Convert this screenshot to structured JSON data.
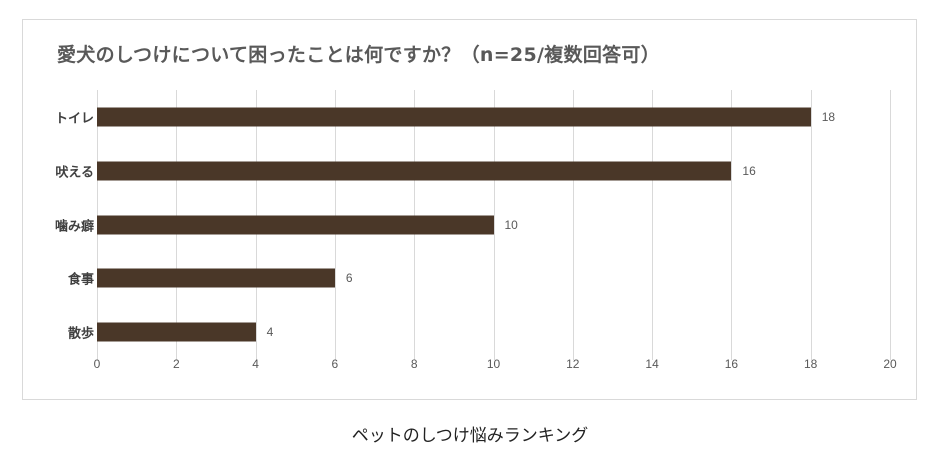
{
  "chart_data": {
    "type": "bar",
    "orientation": "horizontal",
    "title": "愛犬のしつけについて困ったことは何ですか？（n=25/複数回答可）",
    "categories": [
      "トイレ",
      "吠える",
      "噛み癖",
      "食事",
      "散歩"
    ],
    "values": [
      18,
      16,
      10,
      6,
      4
    ],
    "data_labels": [
      "18",
      "16",
      "10",
      "6",
      "4"
    ],
    "xlabel": "",
    "ylabel": "",
    "xlim": [
      0,
      20
    ],
    "x_ticks": [
      "0",
      "2",
      "4",
      "6",
      "8",
      "10",
      "12",
      "14",
      "16",
      "18",
      "20"
    ],
    "grid": true,
    "legend": null,
    "bar_color": "#4a3728"
  },
  "caption": "ペットのしつけ悩みランキング"
}
